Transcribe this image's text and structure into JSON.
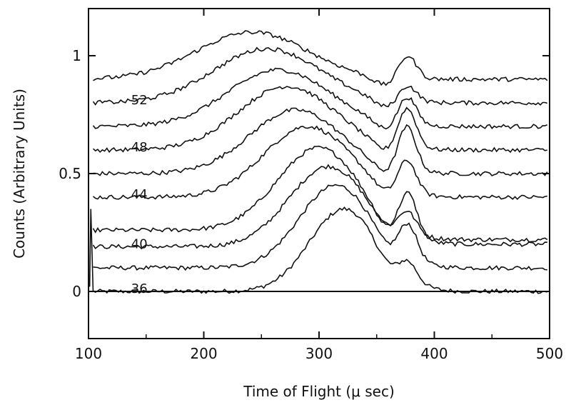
{
  "chart_data": {
    "type": "line",
    "title": "",
    "xlabel": "Time of Flight (μ sec)",
    "ylabel": "Counts (Arbitrary Units)",
    "xlim": [
      100,
      500
    ],
    "ylim": [
      -0.2,
      1.2
    ],
    "x_ticks": [
      "100",
      "200",
      "300",
      "400",
      "500"
    ],
    "y_ticks": [
      "0",
      "0.5",
      "1"
    ],
    "grid": false,
    "legend": "none",
    "line_color": "#111111",
    "series_profile": {
      "x": [
        100,
        110,
        120,
        130,
        140,
        150,
        160,
        170,
        180,
        190,
        200,
        210,
        220,
        230,
        240,
        250,
        260,
        270,
        280,
        290,
        300,
        310,
        320,
        330,
        340,
        350,
        360,
        370,
        380,
        390,
        400,
        410,
        420,
        430,
        440,
        450,
        460,
        470,
        480,
        490,
        500
      ],
      "shape": [
        0,
        0,
        0,
        0,
        0,
        0,
        0,
        0,
        0,
        0,
        0,
        0,
        0,
        0,
        0,
        0,
        0,
        0,
        0,
        0,
        0,
        0,
        0,
        0,
        0,
        0,
        0,
        0,
        0,
        0,
        0,
        0,
        0,
        0,
        0,
        0,
        0,
        0,
        0,
        0,
        0
      ]
    },
    "series": [
      {
        "label": "36",
        "baseline": 0.0,
        "peak_x": 322,
        "peak_height": 0.35,
        "peak_width": 30,
        "peak2_x": 377,
        "peak2_height": 0.08,
        "tail": 0.0
      },
      {
        "label": "",
        "baseline": 0.1,
        "peak_x": 315,
        "peak_height": 0.35,
        "peak_width": 32,
        "peak2_x": 377,
        "peak2_height": 0.15,
        "tail": 0.1
      },
      {
        "label": "40",
        "baseline": 0.19,
        "peak_x": 308,
        "peak_height": 0.34,
        "peak_width": 34,
        "peak2_x": 377,
        "peak2_height": 0.19,
        "tail": 0.2
      },
      {
        "label": "",
        "baseline": 0.26,
        "peak_x": 300,
        "peak_height": 0.35,
        "peak_width": 36,
        "peak2_x": 376,
        "peak2_height": 0.1,
        "tail": 0.22
      },
      {
        "label": "44",
        "baseline": 0.4,
        "peak_x": 290,
        "peak_height": 0.3,
        "peak_width": 38,
        "peak2_x": 376,
        "peak2_height": 0.15,
        "tail": 0.4
      },
      {
        "label": "",
        "baseline": 0.5,
        "peak_x": 280,
        "peak_height": 0.27,
        "peak_width": 40,
        "peak2_x": 376,
        "peak2_height": 0.2,
        "tail": 0.5
      },
      {
        "label": "48",
        "baseline": 0.6,
        "peak_x": 272,
        "peak_height": 0.27,
        "peak_width": 42,
        "peak2_x": 376,
        "peak2_height": 0.18,
        "tail": 0.6
      },
      {
        "label": "",
        "baseline": 0.7,
        "peak_x": 265,
        "peak_height": 0.24,
        "peak_width": 44,
        "peak2_x": 376,
        "peak2_height": 0.13,
        "tail": 0.7
      },
      {
        "label": "52",
        "baseline": 0.8,
        "peak_x": 255,
        "peak_height": 0.23,
        "peak_width": 46,
        "peak2_x": 376,
        "peak2_height": 0.08,
        "tail": 0.8
      },
      {
        "label": "",
        "baseline": 0.9,
        "peak_x": 242,
        "peak_height": 0.2,
        "peak_width": 48,
        "peak2_x": 376,
        "peak2_height": 0.11,
        "tail": 0.9
      }
    ]
  }
}
